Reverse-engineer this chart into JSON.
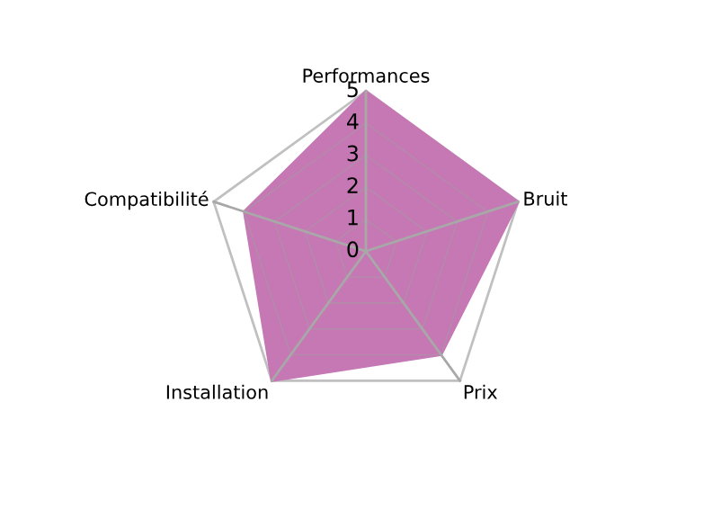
{
  "chart_data": {
    "type": "radar",
    "categories": [
      "Performances",
      "Bruit",
      "Prix",
      "Installation",
      "Compatibilité"
    ],
    "series": [
      {
        "color": "#c678b4",
        "values": [
          5,
          5,
          4,
          5,
          4
        ]
      }
    ],
    "ylim": [
      0,
      5
    ],
    "yticks": [
      0,
      1,
      2,
      3,
      4,
      5
    ],
    "grid": true,
    "legend": false
  }
}
